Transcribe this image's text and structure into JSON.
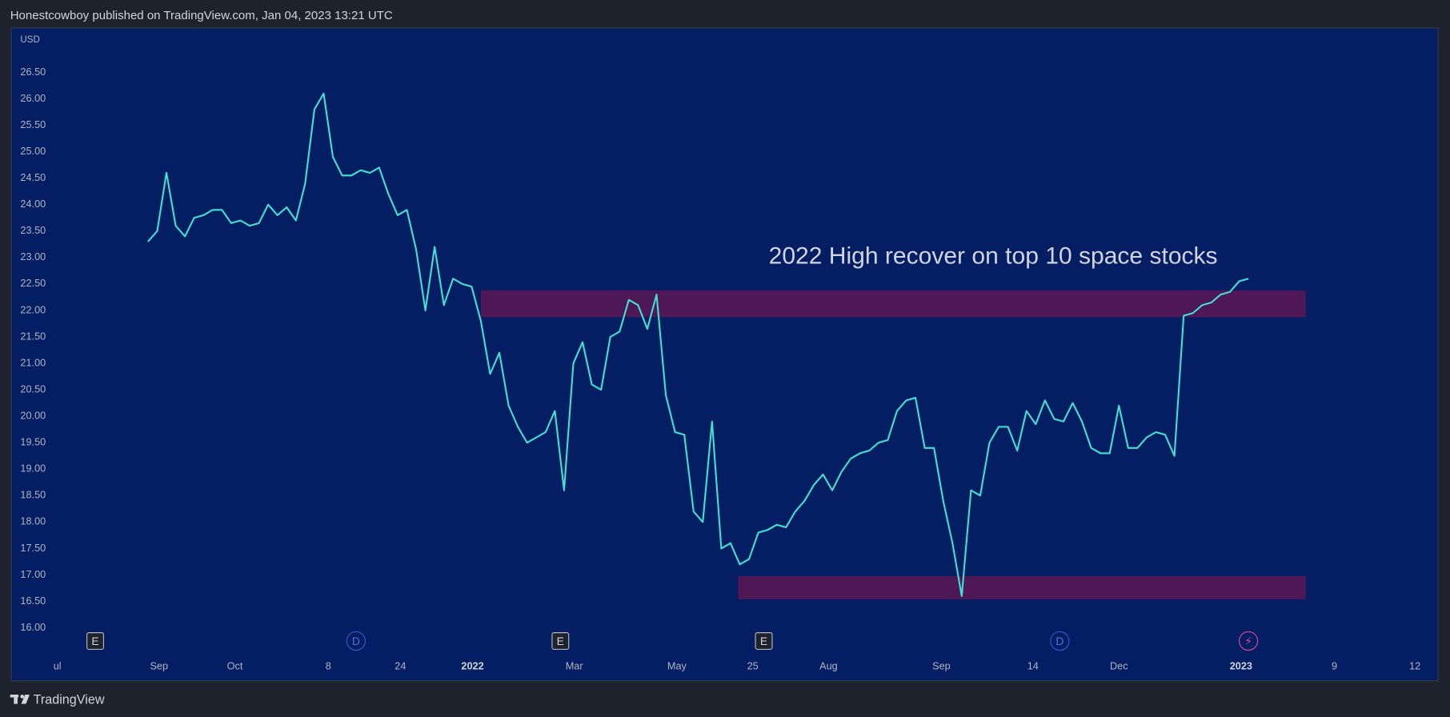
{
  "header": "Honestcowboy published on TradingView.com, Jan 04, 2023 13:21 UTC",
  "footer": "TradingView",
  "chart_data": {
    "type": "line",
    "axis_unit": "USD",
    "annotation": {
      "text": "2022 High recover on top 10 space stocks",
      "x": 91.4,
      "y": 23.0
    },
    "series": [
      {
        "color": "#40e3d3",
        "values": [
          23.3,
          23.5,
          24.6,
          23.6,
          23.4,
          23.75,
          23.8,
          23.9,
          23.9,
          23.65,
          23.7,
          23.6,
          23.65,
          24.0,
          23.8,
          23.95,
          23.7,
          24.4,
          25.8,
          26.1,
          24.9,
          24.55,
          24.55,
          24.65,
          24.6,
          24.7,
          24.2,
          23.8,
          23.9,
          23.15,
          22.0,
          23.2,
          22.1,
          22.6,
          22.5,
          22.45,
          21.8,
          20.8,
          21.2,
          20.2,
          19.8,
          19.5,
          19.6,
          19.7,
          20.1,
          18.6,
          21.0,
          21.4,
          20.6,
          20.5,
          21.5,
          21.6,
          22.2,
          22.1,
          21.65,
          22.3,
          20.4,
          19.7,
          19.65,
          18.2,
          18.0,
          19.9,
          17.5,
          17.6,
          17.2,
          17.3,
          17.8,
          17.85,
          17.95,
          17.9,
          18.2,
          18.4,
          18.7,
          18.9,
          18.6,
          18.95,
          19.2,
          19.3,
          19.35,
          19.5,
          19.55,
          20.1,
          20.3,
          20.35,
          19.4,
          19.4,
          18.4,
          17.6,
          16.6,
          18.6,
          18.5,
          19.5,
          19.8,
          19.8,
          19.35,
          20.1,
          19.85,
          20.3,
          19.95,
          19.9,
          20.25,
          19.9,
          19.4,
          19.3,
          19.3,
          20.2,
          19.4,
          19.4,
          19.6,
          19.7,
          19.65,
          19.25,
          21.9,
          21.95,
          22.1,
          22.15,
          22.3,
          22.35,
          22.55,
          22.6
        ]
      }
    ],
    "zones": [
      {
        "color": "#5a1852",
        "x": [
          36,
          125.2
        ],
        "y": [
          21.87,
          22.38
        ]
      },
      {
        "color": "#5a1852",
        "x": [
          63.8,
          125.2
        ],
        "y": [
          16.54,
          16.98
        ]
      }
    ],
    "events": [
      {
        "label": "E",
        "x": -5.7
      },
      {
        "label": "D",
        "x": 22.5
      },
      {
        "label": "E",
        "x": 44.6
      },
      {
        "label": "E",
        "x": 66.6
      },
      {
        "label": "D",
        "x": 98.6
      },
      {
        "label": "⚡",
        "x": 119
      }
    ],
    "xlim": [
      -14.8,
      139.5
    ],
    "xticks": [
      {
        "value": -9.8,
        "label": "ul"
      },
      {
        "value": 1.2,
        "label": "Sep"
      },
      {
        "value": 9.4,
        "label": "Oct"
      },
      {
        "value": 19.5,
        "label": "8"
      },
      {
        "value": 27.3,
        "label": "24"
      },
      {
        "value": 35.1,
        "label": "2022"
      },
      {
        "value": 46.1,
        "label": "Mar"
      },
      {
        "value": 57.2,
        "label": "May"
      },
      {
        "value": 65.4,
        "label": "25"
      },
      {
        "value": 73.6,
        "label": "Aug"
      },
      {
        "value": 85.8,
        "label": "Sep"
      },
      {
        "value": 95.7,
        "label": "14"
      },
      {
        "value": 105,
        "label": "Dec"
      },
      {
        "value": 118.2,
        "label": "2023"
      },
      {
        "value": 128.3,
        "label": "9"
      },
      {
        "value": 137,
        "label": "12"
      }
    ],
    "ylim": [
      15.0,
      27.34
    ],
    "yticks": [
      {
        "value": 16,
        "label": "16.00"
      },
      {
        "value": 16.5,
        "label": "16.50"
      },
      {
        "value": 17,
        "label": "17.00"
      },
      {
        "value": 17.5,
        "label": "17.50"
      },
      {
        "value": 18,
        "label": "18.00"
      },
      {
        "value": 18.5,
        "label": "18.50"
      },
      {
        "value": 19,
        "label": "19.00"
      },
      {
        "value": 19.5,
        "label": "19.50"
      },
      {
        "value": 20,
        "label": "20.00"
      },
      {
        "value": 20.5,
        "label": "20.50"
      },
      {
        "value": 21,
        "label": "21.00"
      },
      {
        "value": 21.5,
        "label": "21.50"
      },
      {
        "value": 22,
        "label": "22.00"
      },
      {
        "value": 22.5,
        "label": "22.50"
      },
      {
        "value": 23,
        "label": "23.00"
      },
      {
        "value": 23.5,
        "label": "23.50"
      },
      {
        "value": 24,
        "label": "24.00"
      },
      {
        "value": 24.5,
        "label": "24.50"
      },
      {
        "value": 25,
        "label": "25.00"
      },
      {
        "value": 25.5,
        "label": "25.50"
      },
      {
        "value": 26,
        "label": "26.00"
      },
      {
        "value": 26.5,
        "label": "26.50"
      }
    ],
    "grid": false
  }
}
